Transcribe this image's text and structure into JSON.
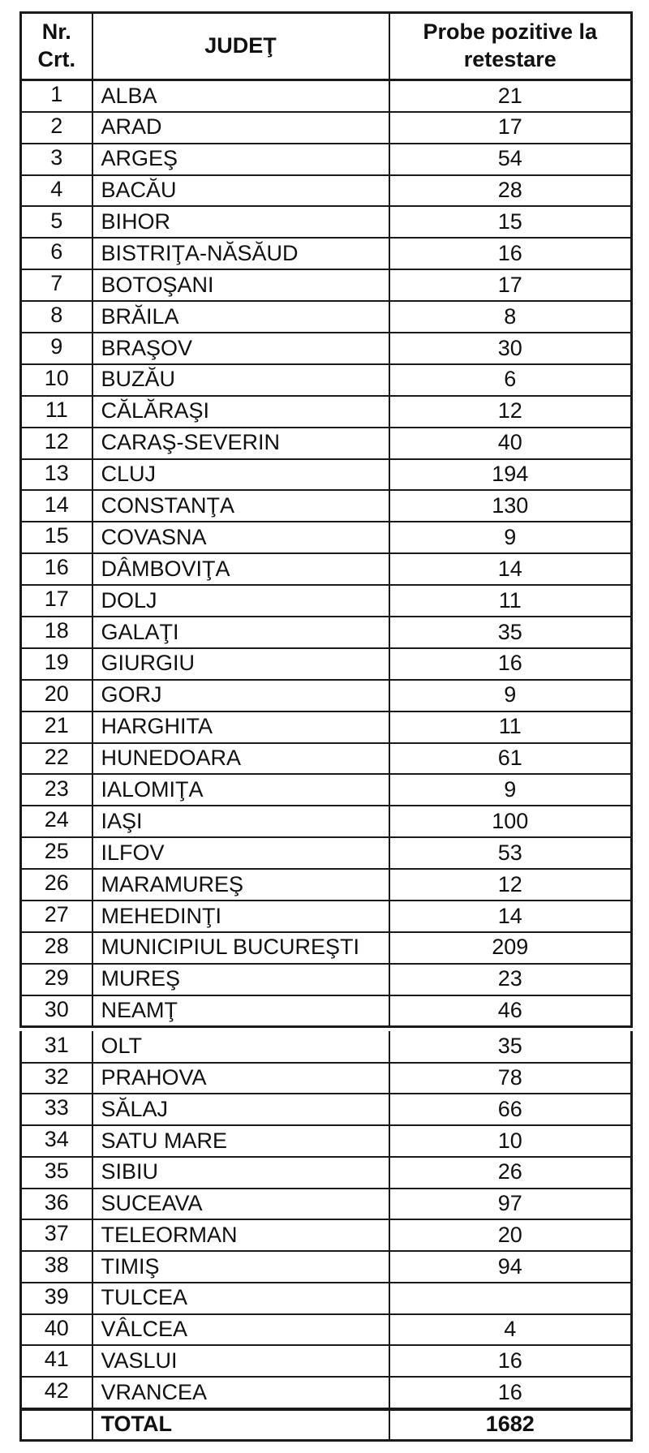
{
  "table": {
    "header": {
      "nr": "Nr.\nCrt.",
      "judet": "JUDEŢ",
      "probe": "Probe pozitive la retestare"
    },
    "rows": [
      {
        "nr": "1",
        "judet": "ALBA",
        "probe": "21"
      },
      {
        "nr": "2",
        "judet": "ARAD",
        "probe": "17"
      },
      {
        "nr": "3",
        "judet": "ARGEŞ",
        "probe": "54"
      },
      {
        "nr": "4",
        "judet": "BACĂU",
        "probe": "28"
      },
      {
        "nr": "5",
        "judet": "BIHOR",
        "probe": "15"
      },
      {
        "nr": "6",
        "judet": "BISTRIŢA-NĂSĂUD",
        "probe": "16"
      },
      {
        "nr": "7",
        "judet": "BOTOŞANI",
        "probe": "17"
      },
      {
        "nr": "8",
        "judet": "BRĂILA",
        "probe": "8"
      },
      {
        "nr": "9",
        "judet": "BRAŞOV",
        "probe": "30"
      },
      {
        "nr": "10",
        "judet": "BUZĂU",
        "probe": "6"
      },
      {
        "nr": "11",
        "judet": "CĂLĂRAŞI",
        "probe": "12"
      },
      {
        "nr": "12",
        "judet": "CARAŞ-SEVERIN",
        "probe": "40"
      },
      {
        "nr": "13",
        "judet": "CLUJ",
        "probe": "194"
      },
      {
        "nr": "14",
        "judet": "CONSTANŢA",
        "probe": "130"
      },
      {
        "nr": "15",
        "judet": "COVASNA",
        "probe": "9"
      },
      {
        "nr": "16",
        "judet": "DÂMBOVIŢA",
        "probe": "14"
      },
      {
        "nr": "17",
        "judet": "DOLJ",
        "probe": "11"
      },
      {
        "nr": "18",
        "judet": "GALAŢI",
        "probe": "35"
      },
      {
        "nr": "19",
        "judet": "GIURGIU",
        "probe": "16"
      },
      {
        "nr": "20",
        "judet": "GORJ",
        "probe": "9"
      },
      {
        "nr": "21",
        "judet": "HARGHITA",
        "probe": "11"
      },
      {
        "nr": "22",
        "judet": "HUNEDOARA",
        "probe": "61"
      },
      {
        "nr": "23",
        "judet": "IALOMIŢA",
        "probe": "9"
      },
      {
        "nr": "24",
        "judet": "IAŞI",
        "probe": "100"
      },
      {
        "nr": "25",
        "judet": "ILFOV",
        "probe": "53"
      },
      {
        "nr": "26",
        "judet": "MARAMUREŞ",
        "probe": "12"
      },
      {
        "nr": "27",
        "judet": "MEHEDINŢI",
        "probe": "14"
      },
      {
        "nr": "28",
        "judet": "MUNICIPIUL BUCUREŞTI",
        "probe": "209"
      },
      {
        "nr": "29",
        "judet": "MUREŞ",
        "probe": "23"
      },
      {
        "nr": "30",
        "judet": "NEAMŢ",
        "probe": "46"
      },
      {
        "nr": "31",
        "judet": "OLT",
        "probe": "35"
      },
      {
        "nr": "32",
        "judet": "PRAHOVA",
        "probe": "78"
      },
      {
        "nr": "33",
        "judet": "SĂLAJ",
        "probe": "66"
      },
      {
        "nr": "34",
        "judet": "SATU MARE",
        "probe": "10"
      },
      {
        "nr": "35",
        "judet": "SIBIU",
        "probe": "26"
      },
      {
        "nr": "36",
        "judet": "SUCEAVA",
        "probe": "97"
      },
      {
        "nr": "37",
        "judet": "TELEORMAN",
        "probe": "20"
      },
      {
        "nr": "38",
        "judet": "TIMIŞ",
        "probe": "94"
      },
      {
        "nr": "39",
        "judet": "TULCEA",
        "probe": ""
      },
      {
        "nr": "40",
        "judet": "VÂLCEA",
        "probe": "4"
      },
      {
        "nr": "41",
        "judet": "VASLUI",
        "probe": "16"
      },
      {
        "nr": "42",
        "judet": "VRANCEA",
        "probe": "16"
      }
    ],
    "total": {
      "label": "TOTAL",
      "probe": "1682"
    }
  },
  "colors": {
    "border": "#1a1a1a",
    "text": "#111111",
    "background": "#ffffff"
  }
}
